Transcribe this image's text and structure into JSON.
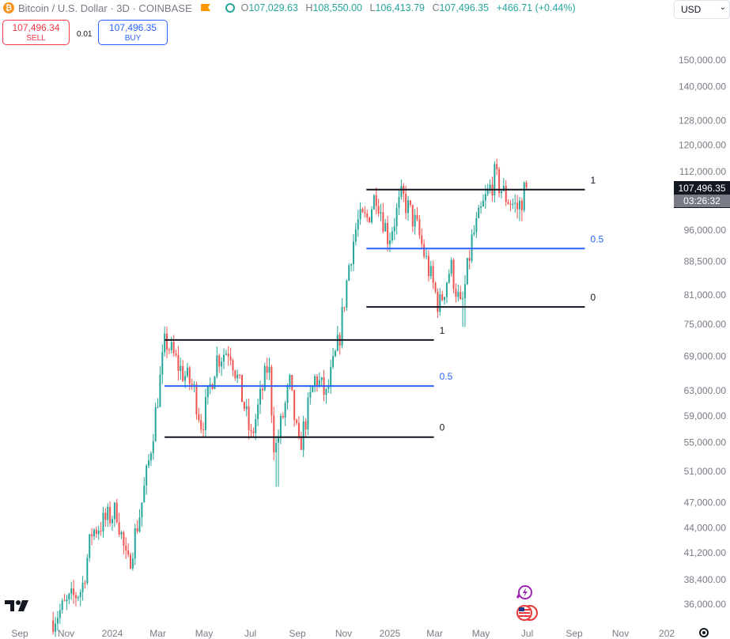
{
  "header": {
    "title": "Bitcoin / U.S. Dollar · 3D · COINBASE",
    "open_label": "O",
    "open": "107,029.63",
    "high_label": "H",
    "high": "108,550.00",
    "low_label": "L",
    "low": "106,413.79",
    "close_label": "C",
    "close": "107,496.35",
    "change": "+466.71 (+0.44%)"
  },
  "trade": {
    "sell_price": "107,496.34",
    "sell_label": "SELL",
    "spread": "0.01",
    "buy_price": "107,496.35",
    "buy_label": "BUY"
  },
  "currency": {
    "value": "USD"
  },
  "last_price": {
    "price": "107,496.35",
    "countdown": "03:26:32"
  },
  "icons": [
    "bitcoin-icon",
    "flag-icon",
    "market-status-icon",
    "tradingview-logo",
    "settings-gear-icon",
    "flash-icon",
    "us-flag-icon"
  ],
  "colors": {
    "up": "#26a69a",
    "down": "#ef5350",
    "fib_mid": "#2962ff",
    "fib_level": "#131722"
  },
  "chart_data": {
    "type": "candlestick",
    "scale": "log",
    "x_axis_labels": [
      {
        "label": "Sep",
        "date": "2023-09-01"
      },
      {
        "label": "Nov",
        "date": "2023-11-01"
      },
      {
        "label": "2024",
        "date": "2024-01-01"
      },
      {
        "label": "Mar",
        "date": "2024-03-01"
      },
      {
        "label": "May",
        "date": "2024-05-01"
      },
      {
        "label": "Jul",
        "date": "2024-07-01"
      },
      {
        "label": "Sep",
        "date": "2024-09-01"
      },
      {
        "label": "Nov",
        "date": "2024-11-01"
      },
      {
        "label": "2025",
        "date": "2025-01-01"
      },
      {
        "label": "Mar",
        "date": "2025-03-01"
      },
      {
        "label": "May",
        "date": "2025-05-01"
      },
      {
        "label": "Jul",
        "date": "2025-07-01"
      },
      {
        "label": "Sep",
        "date": "2025-09-01"
      },
      {
        "label": "Nov",
        "date": "2025-11-01"
      },
      {
        "label": "202",
        "date": "2026-01-01"
      }
    ],
    "y_ticks": [
      {
        "label": "150,000.00",
        "value": 150000
      },
      {
        "label": "140,000.00",
        "value": 140000
      },
      {
        "label": "128,000.00",
        "value": 128000
      },
      {
        "label": "120,000.00",
        "value": 120000
      },
      {
        "label": "112,000.00",
        "value": 112000
      },
      {
        "label": "96,000.00",
        "value": 96000
      },
      {
        "label": "88,500.00",
        "value": 88500
      },
      {
        "label": "81,000.00",
        "value": 81000
      },
      {
        "label": "75,000.00",
        "value": 75000
      },
      {
        "label": "69,000.00",
        "value": 69000
      },
      {
        "label": "63,000.00",
        "value": 63000
      },
      {
        "label": "59,000.00",
        "value": 59000
      },
      {
        "label": "55,000.00",
        "value": 55000
      },
      {
        "label": "51,000.00",
        "value": 51000
      },
      {
        "label": "47,000.00",
        "value": 47000
      },
      {
        "label": "44,000.00",
        "value": 44000
      },
      {
        "label": "41,200.00",
        "value": 41200
      },
      {
        "label": "38,400.00",
        "value": 38400
      },
      {
        "label": "36,000.00",
        "value": 36000
      }
    ],
    "price_range": [
      35000,
      160000
    ],
    "date_range": [
      "2023-08-20",
      "2026-01-15"
    ],
    "price_path": [
      [
        "2023-10-15",
        34500
      ],
      [
        "2023-11-05",
        36000
      ],
      [
        "2023-11-25",
        37500
      ],
      [
        "2023-12-08",
        43500
      ],
      [
        "2024-01-10",
        46000
      ],
      [
        "2024-01-24",
        39500
      ],
      [
        "2024-02-10",
        46000
      ],
      [
        "2024-02-20",
        51500
      ],
      [
        "2024-03-05",
        63000
      ],
      [
        "2024-03-14",
        72000
      ],
      [
        "2024-04-01",
        67000
      ],
      [
        "2024-04-20",
        63500
      ],
      [
        "2024-05-01",
        57500
      ],
      [
        "2024-05-20",
        68500
      ],
      [
        "2024-06-07",
        70500
      ],
      [
        "2024-06-25",
        61000
      ],
      [
        "2024-07-05",
        55500
      ],
      [
        "2024-07-28",
        68000
      ],
      [
        "2024-08-05",
        53500
      ],
      [
        "2024-08-25",
        64000
      ],
      [
        "2024-09-06",
        54000
      ],
      [
        "2024-09-28",
        65500
      ],
      [
        "2024-10-12",
        62000
      ],
      [
        "2024-10-29",
        72000
      ],
      [
        "2024-11-12",
        89000
      ],
      [
        "2024-11-22",
        98000
      ],
      [
        "2024-12-05",
        99000
      ],
      [
        "2024-12-17",
        106000
      ],
      [
        "2025-01-02",
        94000
      ],
      [
        "2025-01-20",
        105000
      ],
      [
        "2025-02-08",
        97000
      ],
      [
        "2025-02-25",
        86000
      ],
      [
        "2025-03-10",
        78500
      ],
      [
        "2025-03-25",
        87500
      ],
      [
        "2025-04-08",
        77500
      ],
      [
        "2025-04-22",
        93500
      ],
      [
        "2025-05-08",
        103000
      ],
      [
        "2025-05-22",
        110500
      ],
      [
        "2025-06-05",
        105000
      ],
      [
        "2025-06-22",
        101500
      ],
      [
        "2025-07-02",
        107496
      ]
    ],
    "notable_wicks": [
      {
        "date": "2024-08-05",
        "low": 49000
      },
      {
        "date": "2025-04-08",
        "low": 74500
      },
      {
        "date": "2025-06-22",
        "low": 98300
      },
      {
        "date": "2025-05-22",
        "high": 111900
      }
    ],
    "fib_ranges": [
      {
        "start": "2024-03-10",
        "end": "2025-02-28",
        "levels": [
          {
            "label": "1",
            "value": 72000
          },
          {
            "label": "0.5",
            "value": 63800
          },
          {
            "label": "0",
            "value": 55800
          }
        ]
      },
      {
        "start": "2024-12-01",
        "end": "2025-09-15",
        "levels": [
          {
            "label": "1",
            "value": 106800
          },
          {
            "label": "0.5",
            "value": 91500
          },
          {
            "label": "0",
            "value": 78500
          }
        ]
      }
    ],
    "last_price": 107496.35
  }
}
